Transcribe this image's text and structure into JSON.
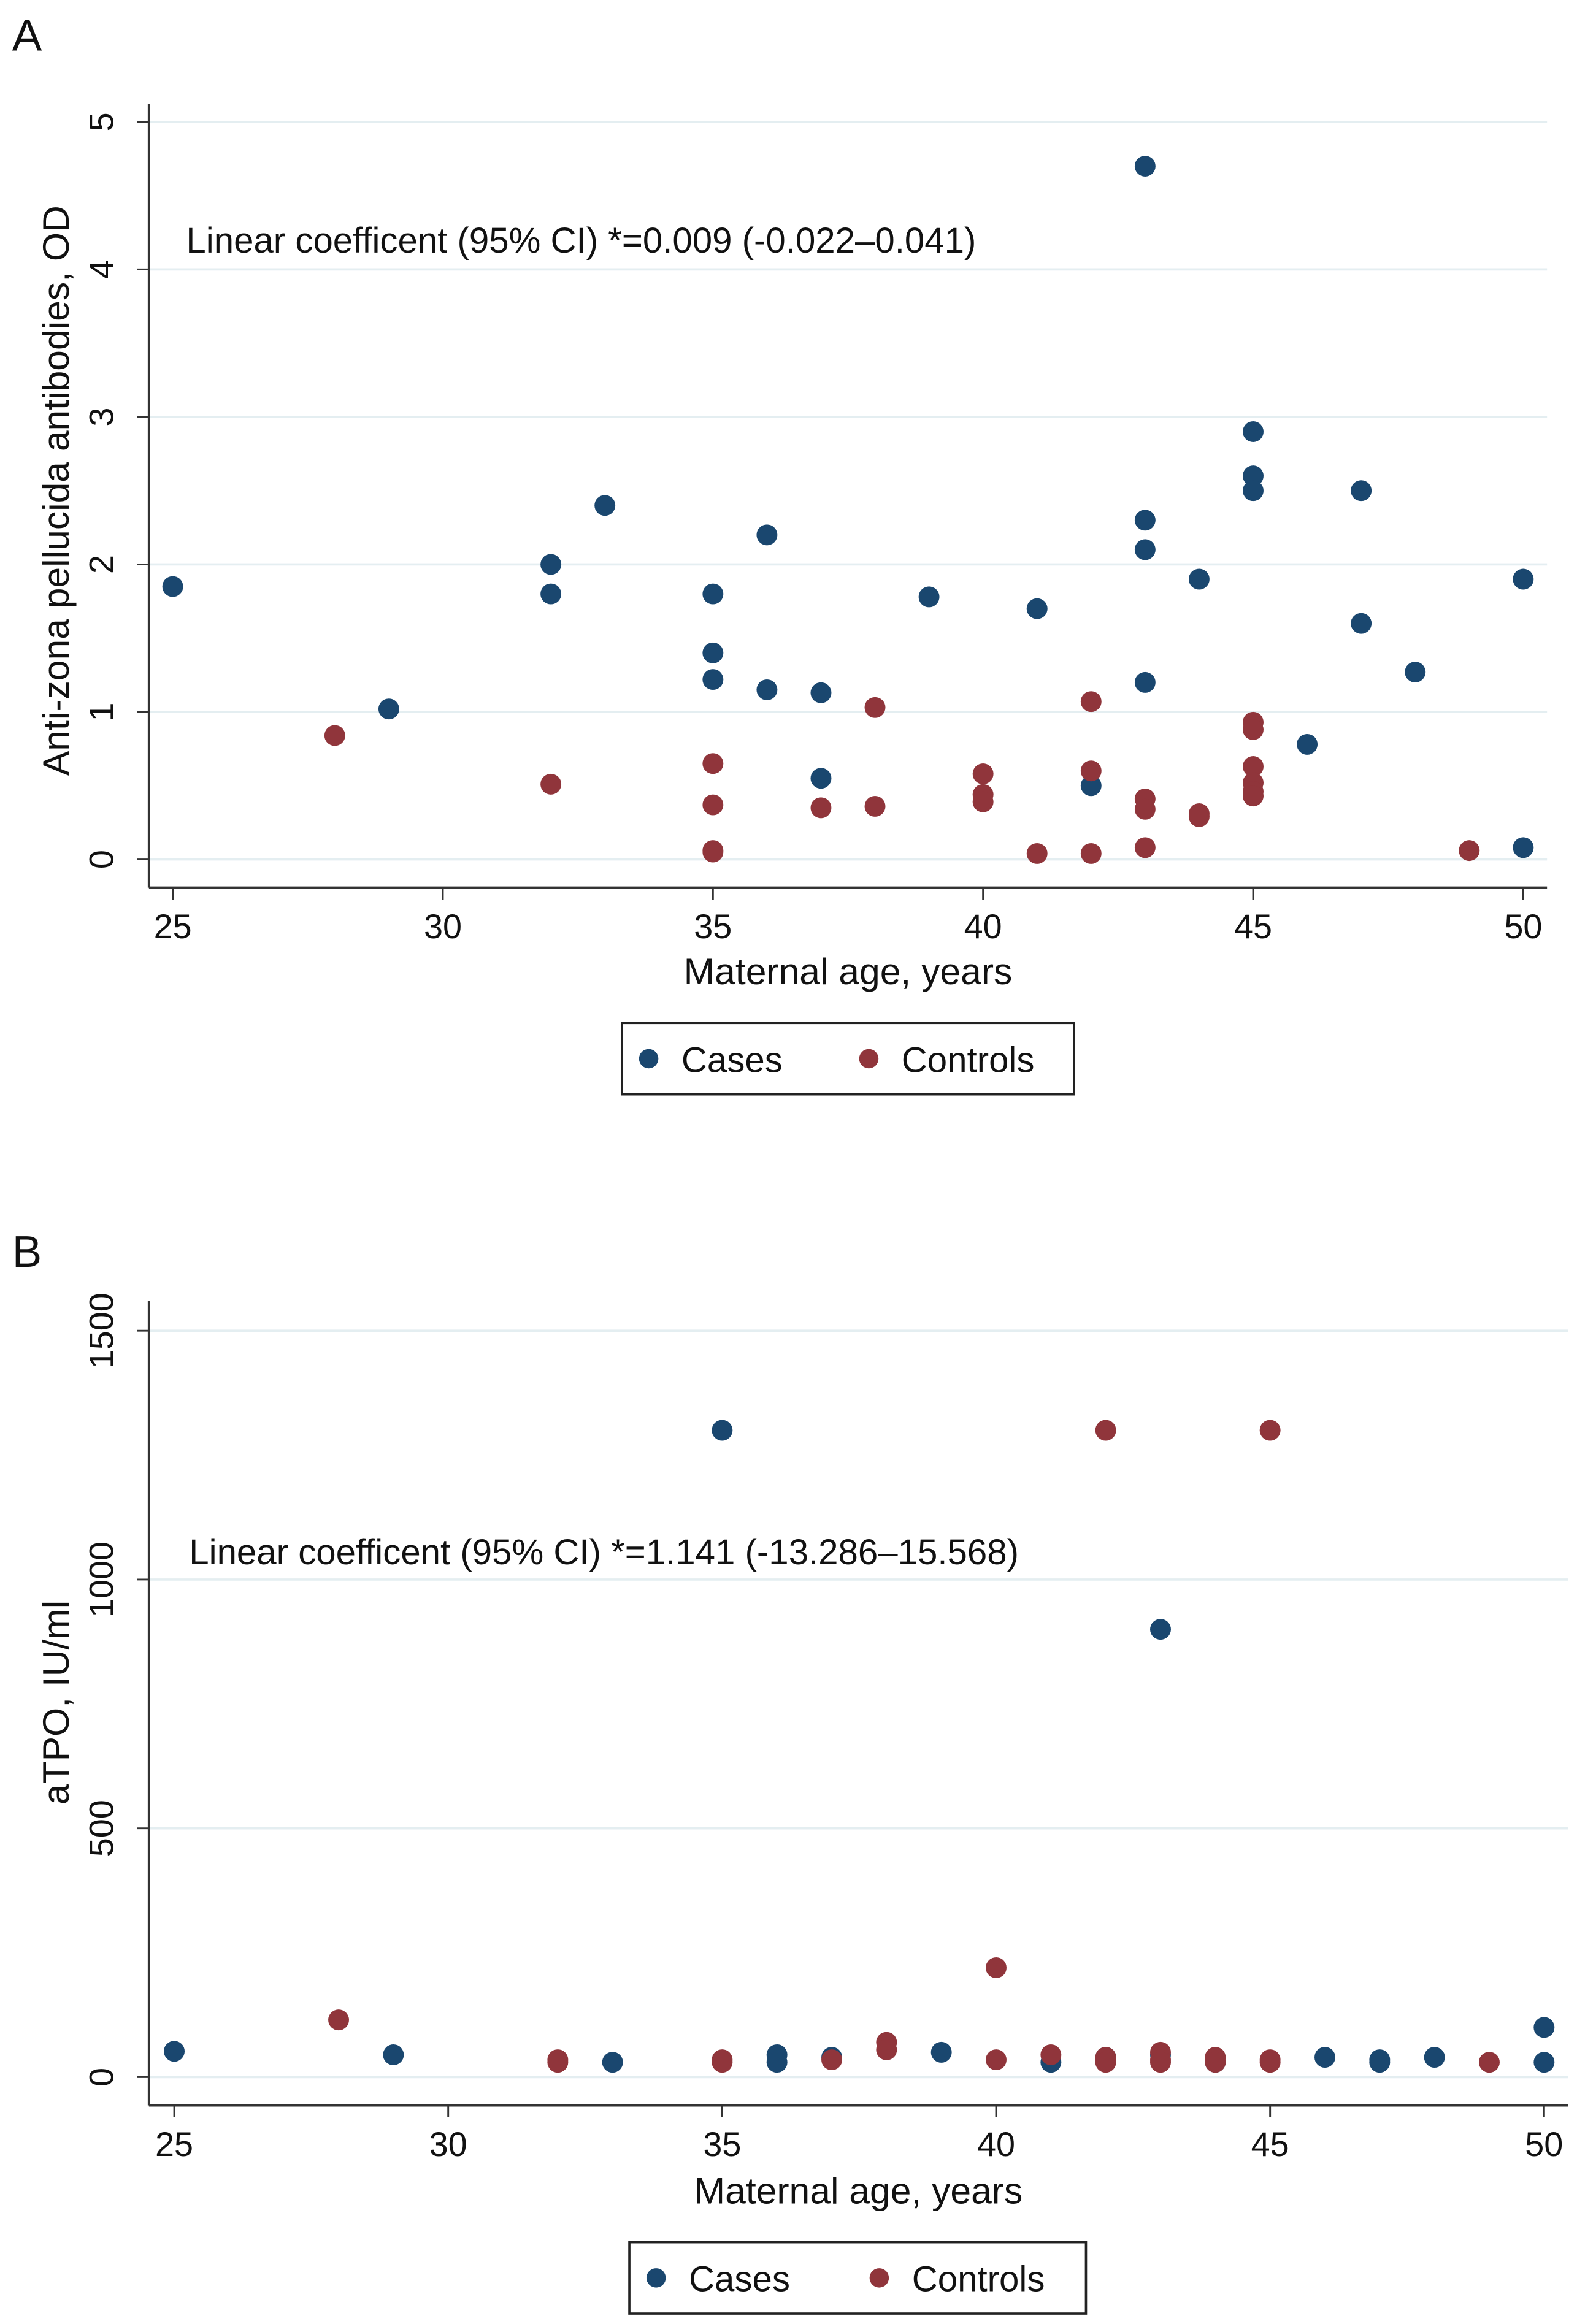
{
  "chart_data": [
    {
      "type": "scatter",
      "panel_label": "A",
      "xlabel": "Maternal age, years",
      "ylabel": "Anti-zona pellucida antibodies, OD",
      "xlim": [
        25,
        50
      ],
      "ylim": [
        0,
        5
      ],
      "xticks": [
        25,
        30,
        35,
        40,
        45,
        50
      ],
      "yticks": [
        0,
        1,
        2,
        3,
        4,
        5
      ],
      "grid": true,
      "annotation": "Linear coefficent (95% CI) *=0.009 (-0.022–0.041)",
      "legend": {
        "placement": "bottom",
        "entries": [
          "Cases",
          "Controls"
        ]
      },
      "series": [
        {
          "name": "Cases",
          "color": "#1a476f",
          "points": [
            [
              25,
              1.85
            ],
            [
              29,
              1.02
            ],
            [
              32,
              2.0
            ],
            [
              32,
              1.8
            ],
            [
              33,
              2.4
            ],
            [
              35,
              1.8
            ],
            [
              35,
              1.4
            ],
            [
              35,
              1.22
            ],
            [
              36,
              2.2
            ],
            [
              36,
              1.15
            ],
            [
              37,
              1.13
            ],
            [
              37,
              0.55
            ],
            [
              39,
              1.78
            ],
            [
              41,
              1.7
            ],
            [
              42,
              0.5
            ],
            [
              43,
              4.7
            ],
            [
              43,
              2.3
            ],
            [
              43,
              2.1
            ],
            [
              43,
              1.2
            ],
            [
              44,
              1.9
            ],
            [
              45,
              2.9
            ],
            [
              45,
              2.6
            ],
            [
              45,
              2.5
            ],
            [
              46,
              0.78
            ],
            [
              47,
              2.5
            ],
            [
              47,
              1.6
            ],
            [
              48,
              1.27
            ],
            [
              50,
              1.9
            ],
            [
              50,
              0.08
            ]
          ]
        },
        {
          "name": "Controls",
          "color": "#90353b",
          "points": [
            [
              28,
              0.84
            ],
            [
              32,
              0.51
            ],
            [
              35,
              0.65
            ],
            [
              35,
              0.37
            ],
            [
              35,
              0.06
            ],
            [
              35,
              0.05
            ],
            [
              37,
              0.35
            ],
            [
              38,
              1.03
            ],
            [
              38,
              0.36
            ],
            [
              40,
              0.58
            ],
            [
              40,
              0.44
            ],
            [
              40,
              0.39
            ],
            [
              41,
              0.04
            ],
            [
              42,
              1.07
            ],
            [
              42,
              0.6
            ],
            [
              42,
              0.04
            ],
            [
              43,
              0.41
            ],
            [
              43,
              0.34
            ],
            [
              43,
              0.08
            ],
            [
              44,
              0.31
            ],
            [
              44,
              0.29
            ],
            [
              45,
              0.93
            ],
            [
              45,
              0.88
            ],
            [
              45,
              0.63
            ],
            [
              45,
              0.52
            ],
            [
              45,
              0.46
            ],
            [
              45,
              0.43
            ],
            [
              49,
              0.06
            ]
          ]
        }
      ]
    },
    {
      "type": "scatter",
      "panel_label": "B",
      "xlabel": "Maternal age, years",
      "ylabel": "aTPO, IU/ml",
      "xlim": [
        25,
        50
      ],
      "ylim": [
        0,
        1500
      ],
      "xticks": [
        25,
        30,
        35,
        40,
        45,
        50
      ],
      "yticks": [
        0,
        500,
        1000,
        1500
      ],
      "grid": true,
      "annotation": "Linear coefficent (95% CI) *=1.141 (-13.286–15.568)",
      "legend": {
        "placement": "bottom",
        "entries": [
          "Cases",
          "Controls"
        ]
      },
      "series": [
        {
          "name": "Cases",
          "color": "#1a476f",
          "points": [
            [
              25,
              52
            ],
            [
              29,
              45
            ],
            [
              33,
              30
            ],
            [
              35,
              1300
            ],
            [
              36,
              45
            ],
            [
              36,
              30
            ],
            [
              37,
              40
            ],
            [
              39,
              50
            ],
            [
              41,
              30
            ],
            [
              42,
              40
            ],
            [
              43,
              900
            ],
            [
              43,
              45
            ],
            [
              44,
              30
            ],
            [
              46,
              40
            ],
            [
              47,
              35
            ],
            [
              47,
              30
            ],
            [
              48,
              40
            ],
            [
              50,
              100
            ],
            [
              50,
              30
            ]
          ]
        },
        {
          "name": "Controls",
          "color": "#90353b",
          "points": [
            [
              28,
              115
            ],
            [
              32,
              35
            ],
            [
              32,
              30
            ],
            [
              35,
              35
            ],
            [
              35,
              30
            ],
            [
              37,
              35
            ],
            [
              38,
              70
            ],
            [
              38,
              55
            ],
            [
              40,
              220
            ],
            [
              40,
              35
            ],
            [
              41,
              45
            ],
            [
              42,
              1300
            ],
            [
              42,
              40
            ],
            [
              42,
              30
            ],
            [
              43,
              50
            ],
            [
              43,
              35
            ],
            [
              43,
              30
            ],
            [
              44,
              40
            ],
            [
              44,
              30
            ],
            [
              45,
              1300
            ],
            [
              45,
              35
            ],
            [
              45,
              30
            ],
            [
              49,
              30
            ]
          ]
        }
      ]
    }
  ]
}
